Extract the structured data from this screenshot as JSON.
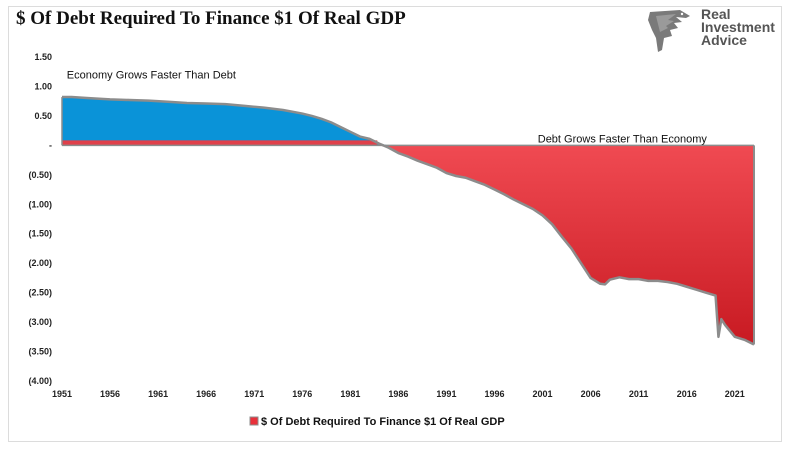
{
  "header": {
    "title": "$ Of Debt Required To Finance $1 Of Real GDP",
    "logo_text": "Real\nInvestment\nAdvice"
  },
  "chart_data": {
    "type": "area",
    "title": "$ Of Debt Required To Finance $1 Of Real GDP",
    "xlabel": "",
    "ylabel": "",
    "x_ticks": [
      1951,
      1956,
      1961,
      1966,
      1971,
      1976,
      1981,
      1986,
      1991,
      1996,
      2001,
      2006,
      2011,
      2016,
      2021
    ],
    "y_ticks": [
      1.5,
      1.0,
      0.5,
      0,
      -0.5,
      -1.0,
      -1.5,
      -2.0,
      -2.5,
      -3.0,
      -3.5,
      -4.0
    ],
    "y_tick_labels": [
      "1.50",
      "1.00",
      "0.50",
      "-",
      "(0.50)",
      "(1.00)",
      "(1.50)",
      "(2.00)",
      "(2.50)",
      "(3.00)",
      "(3.50)",
      "(4.00)"
    ],
    "xlim": [
      1951,
      2023
    ],
    "ylim": [
      -4.0,
      1.5
    ],
    "grid": false,
    "legend_position": "bottom",
    "colors": {
      "positive_fill": "#0a93d8",
      "negative_fill": "#e8303a",
      "outline": "#8c8c8c",
      "zero_band": "#e0404a"
    },
    "annotations": [
      {
        "text": "Economy Grows Faster Than Debt",
        "x": 1951.5,
        "y": 1.08
      },
      {
        "text": "Debt Grows Faster Than Economy",
        "x": 2000.5,
        "y": 0.0
      }
    ],
    "series": [
      {
        "name": "$ Of Debt Required To Finance $1 Of Real GDP",
        "x": [
          1951,
          1952,
          1954,
          1956,
          1958,
          1960,
          1962,
          1964,
          1966,
          1968,
          1970,
          1972,
          1974,
          1976,
          1977,
          1978,
          1979,
          1980,
          1981,
          1982,
          1983,
          1984,
          1985,
          1986,
          1987,
          1988,
          1989,
          1990,
          1991,
          1992,
          1993,
          1994,
          1995,
          1996,
          1997,
          1998,
          1999,
          2000,
          2001,
          2002,
          2003,
          2004,
          2005,
          2006,
          2007,
          2007.5,
          2008,
          2009,
          2010,
          2011,
          2012,
          2013,
          2014,
          2015,
          2016,
          2017,
          2018,
          2019,
          2019.3,
          2019.6,
          2020,
          2021,
          2022,
          2023
        ],
        "values": [
          0.82,
          0.82,
          0.8,
          0.78,
          0.77,
          0.76,
          0.74,
          0.72,
          0.71,
          0.7,
          0.67,
          0.64,
          0.6,
          0.54,
          0.5,
          0.45,
          0.39,
          0.31,
          0.23,
          0.15,
          0.11,
          0.03,
          -0.04,
          -0.13,
          -0.19,
          -0.26,
          -0.32,
          -0.38,
          -0.47,
          -0.52,
          -0.55,
          -0.61,
          -0.67,
          -0.75,
          -0.83,
          -0.92,
          -1.0,
          -1.08,
          -1.19,
          -1.34,
          -1.55,
          -1.75,
          -2.0,
          -2.25,
          -2.35,
          -2.36,
          -2.28,
          -2.24,
          -2.27,
          -2.27,
          -2.3,
          -2.3,
          -2.32,
          -2.35,
          -2.4,
          -2.45,
          -2.5,
          -2.55,
          -3.25,
          -2.95,
          -3.05,
          -3.25,
          -3.3,
          -3.38
        ]
      }
    ]
  }
}
